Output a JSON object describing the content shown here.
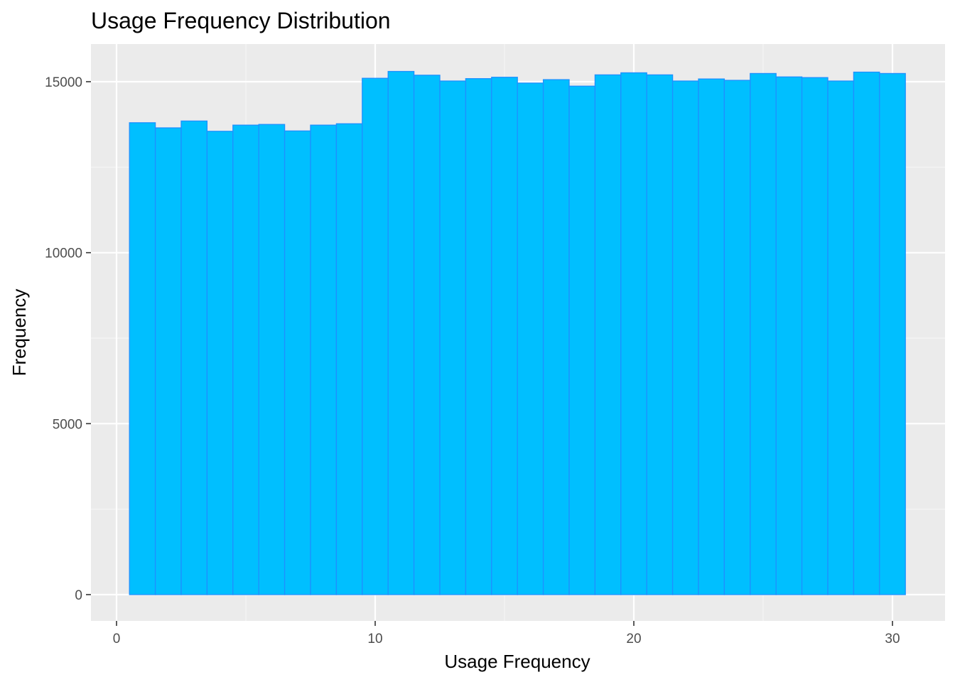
{
  "chart_data": {
    "type": "bar",
    "title": "Usage Frequency Distribution",
    "xlabel": "Usage Frequency",
    "ylabel": "Frequency",
    "x_ticks": [
      0,
      10,
      20,
      30
    ],
    "y_ticks": [
      0,
      5000,
      10000,
      15000
    ],
    "xlim": [
      0.0,
      31.0
    ],
    "ylim": [
      0,
      15600
    ],
    "grid": true,
    "legend": "none",
    "colors": {
      "panel_background": "#ebebeb",
      "grid_major": "#ffffff",
      "grid_minor": "#f5f5f5",
      "bar_fill": "#00bfff",
      "bar_outline": "#1e90ff",
      "tick_color": "#333333"
    },
    "categories": [
      1,
      2,
      3,
      4,
      5,
      6,
      7,
      8,
      9,
      10,
      11,
      12,
      13,
      14,
      15,
      16,
      17,
      18,
      19,
      20,
      21,
      22,
      23,
      24,
      25,
      26,
      27,
      28,
      29,
      30
    ],
    "values": [
      13800,
      13650,
      13850,
      13550,
      13730,
      13750,
      13560,
      13730,
      13770,
      15100,
      15300,
      15190,
      15020,
      15090,
      15130,
      14960,
      15060,
      14870,
      15200,
      15260,
      15200,
      15020,
      15080,
      15040,
      15240,
      15140,
      15120,
      15020,
      15280,
      15240
    ]
  }
}
